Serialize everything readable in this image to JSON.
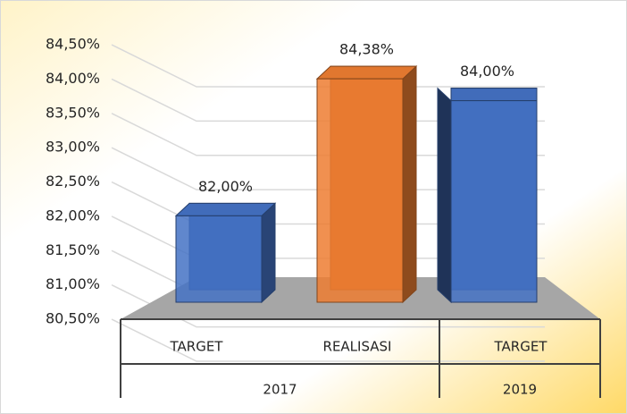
{
  "chart_data": {
    "type": "bar3d",
    "categories": [
      "TARGET",
      "REALISASI",
      "TARGET"
    ],
    "category_groups": [
      "2017",
      "2017",
      "2019"
    ],
    "values": [
      82,
      84.38,
      84
    ],
    "value_labels": [
      "82,00%",
      "84,38%",
      "84,00%"
    ],
    "colors": [
      "#4472c4",
      "#ed7d31",
      "#4472c4"
    ],
    "ylim": [
      80.5,
      84.5
    ],
    "yticks": [
      {
        "value": 80.5,
        "label": "80,50%"
      },
      {
        "value": 81,
        "label": "81,00%"
      },
      {
        "value": 81.5,
        "label": "81,50%"
      },
      {
        "value": 82,
        "label": "82,00%"
      },
      {
        "value": 82.5,
        "label": "82,50%"
      },
      {
        "value": 83,
        "label": "83,00%"
      },
      {
        "value": 83.5,
        "label": "83,50%"
      },
      {
        "value": 84,
        "label": "84,00%"
      },
      {
        "value": 84.5,
        "label": "84,50%"
      }
    ],
    "grid": true
  }
}
